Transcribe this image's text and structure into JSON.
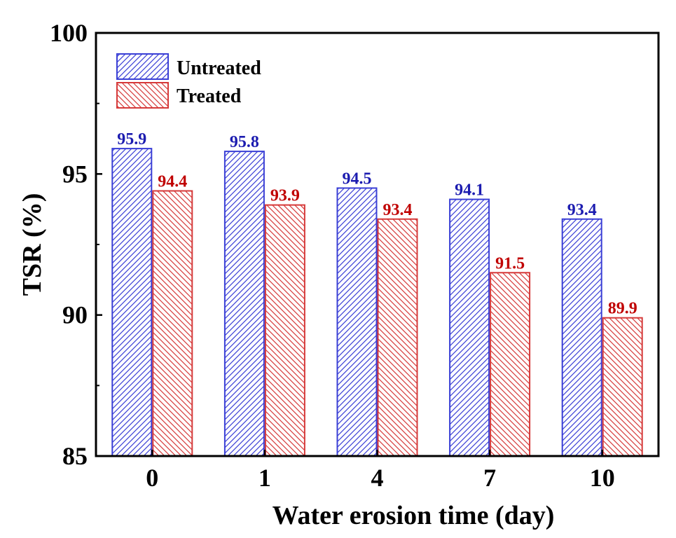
{
  "colors": {
    "untreated": "#3a3fd6",
    "treated": "#d63a3a",
    "untreated_label": "#1c1cb0",
    "treated_label": "#c00000"
  },
  "chart_data": {
    "type": "bar",
    "categories": [
      "0",
      "1",
      "4",
      "7",
      "10"
    ],
    "series": [
      {
        "name": "Untreated",
        "values": [
          95.9,
          95.8,
          94.5,
          94.1,
          93.4
        ],
        "labels": [
          "95.9",
          "95.8",
          "94.5",
          "94.1",
          "93.4"
        ]
      },
      {
        "name": "Treated",
        "values": [
          94.4,
          93.9,
          93.4,
          91.5,
          89.9
        ],
        "labels": [
          "94.4",
          "93.9",
          "93.4",
          "91.5",
          "89.9"
        ]
      }
    ],
    "title": "",
    "xlabel": "Water erosion time (day)",
    "ylabel": "TSR (%)",
    "ylim": [
      85,
      100
    ],
    "yticks": [
      "85",
      "90",
      "95",
      "100"
    ],
    "grid": false,
    "legend_position": "top-left"
  }
}
